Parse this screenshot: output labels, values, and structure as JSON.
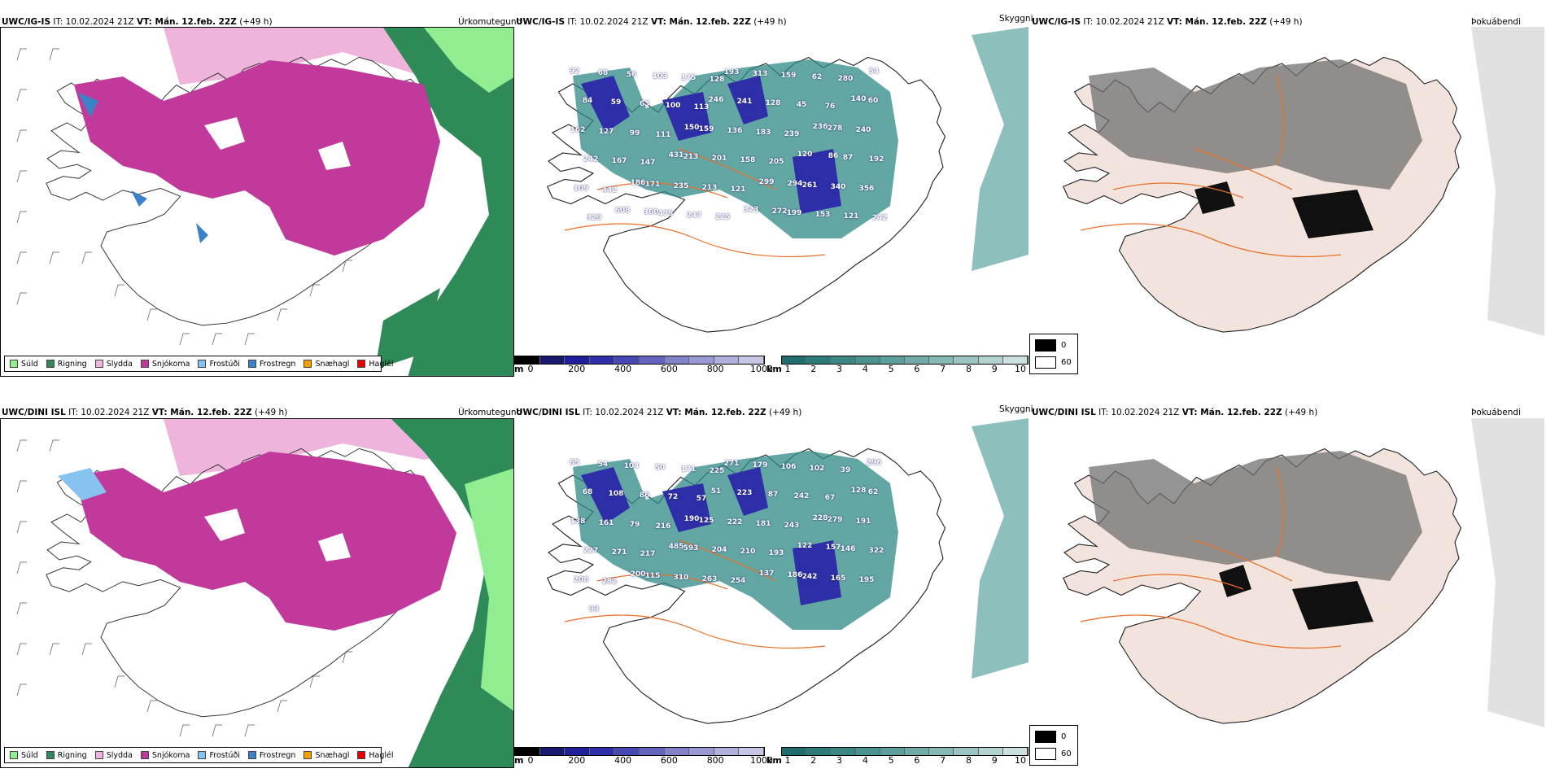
{
  "rows": [
    {
      "model_label": "UWC/IG-IS",
      "it_text": "IT: 10.02.2024 21Z",
      "vt_label": "VT: Mán. 12.feb. 22Z",
      "lead_text": "(+49 h)",
      "snow_values": [
        "92",
        "68",
        "56",
        "103",
        "175",
        "128",
        "193",
        "313",
        "159",
        "62",
        "280",
        "54",
        "84",
        "59",
        "63",
        "100",
        "113",
        "246",
        "241",
        "128",
        "45",
        "76",
        "140",
        "60",
        "162",
        "127",
        "99",
        "111",
        "150",
        "159",
        "136",
        "183",
        "239",
        "236",
        "278",
        "240",
        "242",
        "167",
        "147",
        "431",
        "213",
        "201",
        "158",
        "205",
        "120",
        "86",
        "87",
        "192",
        "109",
        "442",
        "186",
        "171",
        "235",
        "213",
        "121",
        "299",
        "294",
        "261",
        "340",
        "356",
        "329",
        "608",
        "360",
        "475",
        "247",
        "225",
        "323",
        "272",
        "199",
        "153",
        "121",
        "242"
      ]
    },
    {
      "model_label": "UWC/DINI ISL",
      "it_text": "IT: 10.02.2024 21Z",
      "vt_label": "VT: Mán. 12.feb. 22Z",
      "lead_text": "(+49 h)",
      "snow_values": [
        "65",
        "54",
        "104",
        "50",
        "171",
        "225",
        "271",
        "179",
        "106",
        "102",
        "39",
        "296",
        "68",
        "108",
        "86",
        "72",
        "57",
        "51",
        "223",
        "87",
        "242",
        "67",
        "128",
        "62",
        "138",
        "161",
        "79",
        "216",
        "190",
        "125",
        "222",
        "181",
        "243",
        "228",
        "279",
        "191",
        "227",
        "271",
        "217",
        "485",
        "593",
        "204",
        "210",
        "193",
        "122",
        "157",
        "146",
        "322",
        "208",
        "282",
        "200",
        "115",
        "310",
        "263",
        "254",
        "137",
        "186",
        "242",
        "165",
        "195",
        "93"
      ]
    }
  ],
  "panel_titles": {
    "precip": "Úrkomutegund",
    "visibility": "Skyggni",
    "fog": "Þokuábendi"
  },
  "precip_legend": [
    {
      "label": "Súld",
      "color": "#90ee90"
    },
    {
      "label": "Rigning",
      "color": "#2e8b57"
    },
    {
      "label": "Slydda",
      "color": "#eeb4dc"
    },
    {
      "label": "Snjókoma",
      "color": "#c0399b"
    },
    {
      "label": "Frostúði",
      "color": "#87c3f0"
    },
    {
      "label": "Frostregn",
      "color": "#3c82c8"
    },
    {
      "label": "Snæhagl",
      "color": "#f5a000"
    },
    {
      "label": "Haglél",
      "color": "#e60000"
    }
  ],
  "snow_scale": {
    "unit": "m",
    "ticks": [
      "0",
      "200",
      "400",
      "600",
      "800",
      "1000"
    ],
    "colors": [
      "#000000",
      "#191970",
      "#20209a",
      "#2e2ea8",
      "#4848b4",
      "#6464be",
      "#8282c8",
      "#9898d2",
      "#b0b0dc",
      "#c6c6e6"
    ]
  },
  "vis_scale": {
    "unit": "km",
    "ticks": [
      "1",
      "2",
      "3",
      "4",
      "5",
      "6",
      "7",
      "8",
      "9",
      "10"
    ],
    "colors": [
      "#1e6e6e",
      "#2a7b79",
      "#3a8784",
      "#4b938f",
      "#5d9f9b",
      "#71aba7",
      "#86b8b4",
      "#9cc5c2",
      "#b3d2d0",
      "#cbe0df"
    ]
  },
  "fog_key": [
    {
      "label": "0",
      "color": "#000000"
    },
    {
      "label": "60",
      "color": "#ffffff"
    }
  ],
  "colors": {
    "rain": "#2e8b57",
    "drizzle": "#90ee90",
    "sleet": "#eeb4dc",
    "snow": "#c0399b",
    "road": "#e8702a",
    "land_fog": "#f2e4dc",
    "teal": "#2f8a85"
  }
}
